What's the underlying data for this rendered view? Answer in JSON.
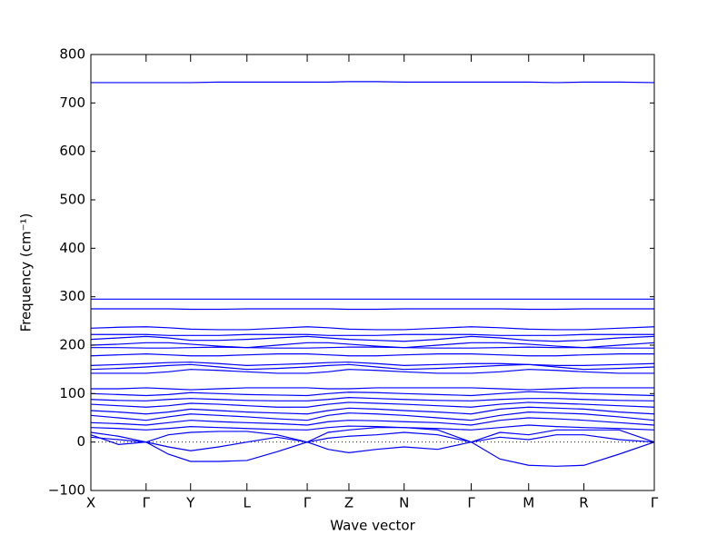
{
  "chart_data": {
    "type": "band-structure",
    "xlabel": "Wave vector",
    "ylabel": "Frequency (cm⁻¹)",
    "color": "#0000ff",
    "zero_line": true,
    "xlim": [
      0,
      1
    ],
    "ylim": [
      -100,
      800
    ],
    "yticks": [
      {
        "value": -100,
        "label": "−100"
      },
      0,
      100,
      200,
      300,
      400,
      500,
      600,
      700,
      800
    ],
    "xticks": [
      {
        "value": 0,
        "label": "X"
      },
      {
        "value": 0.098,
        "label": "Γ"
      },
      {
        "value": 0.177,
        "label": "Y"
      },
      {
        "value": 0.277,
        "label": "L"
      },
      {
        "value": 0.384,
        "label": "Γ"
      },
      {
        "value": 0.458,
        "label": "Z"
      },
      {
        "value": 0.556,
        "label": "N"
      },
      {
        "value": 0.675,
        "label": "Γ"
      },
      {
        "value": 0.777,
        "label": "M"
      },
      {
        "value": 0.875,
        "label": "R"
      },
      {
        "value": 1,
        "label": "Γ"
      }
    ],
    "x": [
      0,
      0.049,
      0.098,
      0.1375,
      0.177,
      0.227,
      0.277,
      0.3305,
      0.384,
      0.421,
      0.458,
      0.507,
      0.556,
      0.6155,
      0.675,
      0.726,
      0.777,
      0.826,
      0.875,
      0.9375,
      1
    ],
    "bands": [
      {
        "values": [
          10,
          5,
          0,
          -25,
          -40,
          -40,
          -38,
          -20,
          0,
          -15,
          -22,
          -15,
          -10,
          -15,
          0,
          -35,
          -48,
          -50,
          -48,
          -25,
          0
        ]
      },
      {
        "values": [
          15,
          -5,
          0,
          -10,
          -18,
          -10,
          0,
          10,
          0,
          8,
          12,
          15,
          20,
          15,
          0,
          10,
          5,
          15,
          15,
          5,
          0
        ]
      },
      {
        "values": [
          20,
          12,
          0,
          15,
          20,
          22,
          22,
          15,
          0,
          20,
          25,
          30,
          30,
          25,
          0,
          20,
          15,
          25,
          25,
          25,
          0
        ]
      },
      {
        "values": [
          30,
          28,
          25,
          28,
          32,
          30,
          28,
          26,
          25,
          30,
          33,
          32,
          30,
          28,
          25,
          30,
          35,
          32,
          30,
          28,
          25
        ]
      },
      {
        "values": [
          40,
          38,
          35,
          40,
          45,
          42,
          40,
          38,
          35,
          42,
          45,
          44,
          42,
          40,
          35,
          45,
          50,
          48,
          45,
          40,
          35
        ]
      },
      {
        "values": [
          55,
          50,
          45,
          52,
          58,
          55,
          52,
          48,
          45,
          55,
          60,
          58,
          55,
          50,
          45,
          55,
          62,
          60,
          58,
          52,
          45
        ]
      },
      {
        "values": [
          65,
          62,
          58,
          62,
          68,
          65,
          62,
          60,
          58,
          65,
          70,
          68,
          65,
          62,
          58,
          68,
          72,
          70,
          68,
          62,
          58
        ]
      },
      {
        "values": [
          78,
          75,
          72,
          75,
          80,
          78,
          75,
          72,
          72,
          78,
          82,
          80,
          78,
          75,
          72,
          78,
          82,
          80,
          78,
          75,
          72
        ]
      },
      {
        "values": [
          88,
          86,
          85,
          88,
          90,
          88,
          86,
          85,
          85,
          88,
          92,
          90,
          88,
          86,
          85,
          88,
          90,
          90,
          88,
          86,
          85
        ]
      },
      {
        "values": [
          100,
          98,
          96,
          98,
          102,
          100,
          98,
          97,
          96,
          100,
          103,
          102,
          100,
          98,
          96,
          100,
          104,
          102,
          100,
          98,
          96
        ]
      },
      {
        "values": [
          110,
          110,
          112,
          110,
          108,
          110,
          112,
          112,
          112,
          110,
          110,
          112,
          112,
          112,
          112,
          110,
          108,
          110,
          112,
          112,
          112
        ]
      },
      {
        "values": [
          142,
          142,
          142,
          145,
          150,
          148,
          145,
          142,
          142,
          145,
          150,
          148,
          145,
          142,
          142,
          145,
          150,
          148,
          145,
          142,
          142
        ]
      },
      {
        "values": [
          150,
          152,
          155,
          158,
          160,
          155,
          150,
          152,
          155,
          158,
          160,
          155,
          150,
          152,
          155,
          158,
          160,
          155,
          150,
          152,
          155
        ]
      },
      {
        "values": [
          158,
          160,
          162,
          164,
          165,
          162,
          158,
          160,
          162,
          164,
          165,
          162,
          158,
          160,
          162,
          162,
          160,
          158,
          158,
          160,
          162
        ]
      },
      {
        "values": [
          178,
          180,
          182,
          180,
          178,
          178,
          180,
          182,
          182,
          180,
          178,
          178,
          180,
          182,
          182,
          180,
          178,
          178,
          180,
          182,
          182
        ]
      },
      {
        "values": [
          195,
          195,
          194,
          194,
          195,
          196,
          195,
          194,
          194,
          195,
          196,
          196,
          195,
          194,
          194,
          195,
          196,
          195,
          195,
          194,
          194
        ]
      },
      {
        "values": [
          200,
          202,
          205,
          205,
          202,
          198,
          195,
          200,
          205,
          205,
          202,
          198,
          195,
          200,
          205,
          205,
          202,
          198,
          195,
          200,
          205
        ]
      },
      {
        "values": [
          212,
          215,
          218,
          215,
          210,
          210,
          212,
          215,
          218,
          215,
          212,
          210,
          208,
          212,
          218,
          215,
          210,
          208,
          210,
          215,
          218
        ]
      },
      {
        "values": [
          222,
          222,
          222,
          220,
          220,
          220,
          222,
          222,
          222,
          220,
          220,
          220,
          222,
          222,
          222,
          220,
          220,
          220,
          222,
          222,
          222
        ]
      },
      {
        "values": [
          235,
          237,
          238,
          236,
          233,
          232,
          232,
          235,
          238,
          236,
          233,
          232,
          232,
          235,
          238,
          236,
          233,
          232,
          232,
          235,
          238
        ]
      },
      {
        "values": [
          275,
          275,
          275,
          275,
          274,
          274,
          275,
          275,
          275,
          275,
          274,
          274,
          275,
          275,
          275,
          275,
          274,
          274,
          275,
          275,
          275
        ]
      },
      {
        "values": [
          295,
          295,
          295,
          295,
          295,
          295,
          295,
          295,
          295,
          295,
          295,
          295,
          295,
          295,
          295,
          295,
          295,
          295,
          295,
          295,
          295
        ]
      },
      {
        "values": [
          742,
          742,
          742,
          742,
          742,
          743,
          743,
          743,
          743,
          743,
          744,
          744,
          743,
          743,
          743,
          743,
          743,
          742,
          743,
          743,
          742
        ]
      }
    ]
  }
}
